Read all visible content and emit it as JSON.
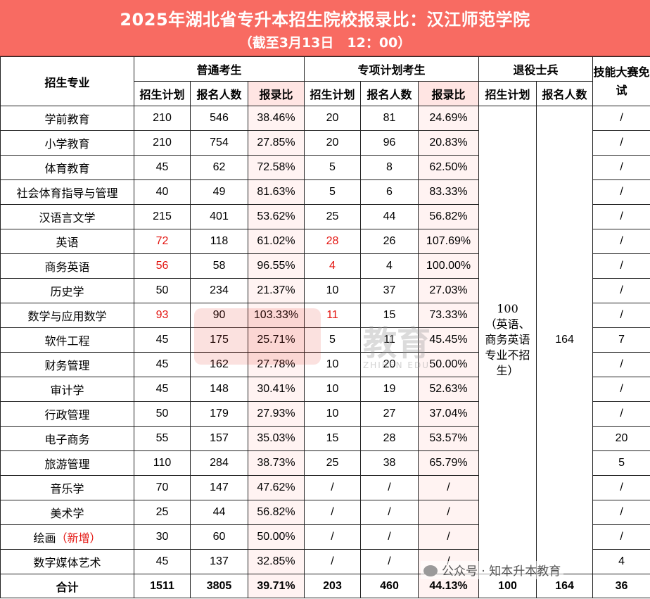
{
  "title": "2025年湖北省专升本招生院校报录比：汉江师范学院",
  "subtitle": "（截至3月13日　12：00）",
  "headers": {
    "major": "招生专业",
    "general": "普通考生",
    "special": "专项计划考生",
    "veteran": "退役士兵",
    "skills": "技能大赛免试",
    "plan": "招生计划",
    "applicants": "报名人数",
    "ratio": "报录比"
  },
  "rows": [
    {
      "major": "学前教育",
      "g_plan": "210",
      "g_app": "546",
      "g_ratio": "38.46%",
      "s_plan": "20",
      "s_app": "81",
      "s_ratio": "24.69%",
      "skill": "/"
    },
    {
      "major": "小学教育",
      "g_plan": "210",
      "g_app": "754",
      "g_ratio": "27.85%",
      "s_plan": "20",
      "s_app": "96",
      "s_ratio": "20.83%",
      "skill": "/"
    },
    {
      "major": "体育教育",
      "g_plan": "45",
      "g_app": "62",
      "g_ratio": "72.58%",
      "s_plan": "5",
      "s_app": "8",
      "s_ratio": "62.50%",
      "skill": "/"
    },
    {
      "major": "社会体育指导与管理",
      "g_plan": "40",
      "g_app": "49",
      "g_ratio": "81.63%",
      "s_plan": "5",
      "s_app": "6",
      "s_ratio": "83.33%",
      "skill": "/"
    },
    {
      "major": "汉语言文学",
      "g_plan": "215",
      "g_app": "401",
      "g_ratio": "53.62%",
      "s_plan": "25",
      "s_app": "44",
      "s_ratio": "56.82%",
      "skill": "/"
    },
    {
      "major": "英语",
      "g_plan": "72",
      "g_app": "118",
      "g_ratio": "61.02%",
      "s_plan": "28",
      "s_app": "26",
      "s_ratio": "107.69%",
      "skill": "/",
      "red_plan": true
    },
    {
      "major": "商务英语",
      "g_plan": "56",
      "g_app": "58",
      "g_ratio": "96.55%",
      "s_plan": "4",
      "s_app": "4",
      "s_ratio": "100.00%",
      "skill": "/",
      "red_plan": true
    },
    {
      "major": "历史学",
      "g_plan": "50",
      "g_app": "234",
      "g_ratio": "21.37%",
      "s_plan": "10",
      "s_app": "37",
      "s_ratio": "27.03%",
      "skill": "/"
    },
    {
      "major": "数学与应用数学",
      "g_plan": "93",
      "g_app": "90",
      "g_ratio": "103.33%",
      "s_plan": "11",
      "s_app": "15",
      "s_ratio": "73.33%",
      "skill": "/",
      "red_plan": true
    },
    {
      "major": "软件工程",
      "g_plan": "45",
      "g_app": "175",
      "g_ratio": "25.71%",
      "s_plan": "5",
      "s_app": "11",
      "s_ratio": "45.45%",
      "skill": "7"
    },
    {
      "major": "财务管理",
      "g_plan": "45",
      "g_app": "162",
      "g_ratio": "27.78%",
      "s_plan": "10",
      "s_app": "20",
      "s_ratio": "50.00%",
      "skill": "/"
    },
    {
      "major": "审计学",
      "g_plan": "45",
      "g_app": "148",
      "g_ratio": "30.41%",
      "s_plan": "10",
      "s_app": "19",
      "s_ratio": "52.63%",
      "skill": "/"
    },
    {
      "major": "行政管理",
      "g_plan": "50",
      "g_app": "179",
      "g_ratio": "27.93%",
      "s_plan": "10",
      "s_app": "27",
      "s_ratio": "37.04%",
      "skill": "/"
    },
    {
      "major": "电子商务",
      "g_plan": "55",
      "g_app": "157",
      "g_ratio": "35.03%",
      "s_plan": "15",
      "s_app": "28",
      "s_ratio": "53.57%",
      "skill": "20"
    },
    {
      "major": "旅游管理",
      "g_plan": "110",
      "g_app": "284",
      "g_ratio": "38.73%",
      "s_plan": "25",
      "s_app": "38",
      "s_ratio": "65.79%",
      "skill": "5"
    },
    {
      "major": "音乐学",
      "g_plan": "70",
      "g_app": "147",
      "g_ratio": "47.62%",
      "s_plan": "/",
      "s_app": "/",
      "s_ratio": "/",
      "skill": "/"
    },
    {
      "major": "美术学",
      "g_plan": "25",
      "g_app": "44",
      "g_ratio": "56.82%",
      "s_plan": "/",
      "s_app": "/",
      "s_ratio": "/",
      "skill": "/"
    },
    {
      "major": "绘画",
      "major_note": "（新增）",
      "g_plan": "30",
      "g_app": "60",
      "g_ratio": "50.00%",
      "s_plan": "/",
      "s_app": "/",
      "s_ratio": "/",
      "skill": "/"
    },
    {
      "major": "数字媒体艺术",
      "g_plan": "45",
      "g_app": "137",
      "g_ratio": "32.85%",
      "s_plan": "/",
      "s_app": "/",
      "s_ratio": "/",
      "skill": "4"
    }
  ],
  "veteran": {
    "plan_lines": [
      "100",
      "（英语、",
      "商务英语",
      "专业不招",
      "生）"
    ],
    "applicants": "164"
  },
  "total": {
    "label": "合计",
    "g_plan": "1511",
    "g_app": "3805",
    "g_ratio": "39.71%",
    "s_plan": "203",
    "s_app": "460",
    "s_ratio": "44.13%",
    "v_plan": "100",
    "v_app": "164",
    "skill": "36"
  },
  "watermark": {
    "center_text": "教育",
    "center_sub": "ZHIBEN EDU",
    "footer": "公众号 · 知本升本教育",
    "footer_icon": "wechat-icon"
  },
  "colors": {
    "title_band": "#f86b62",
    "ratio_bg": "#fff3f2",
    "highlight_red": "#e3140f"
  }
}
